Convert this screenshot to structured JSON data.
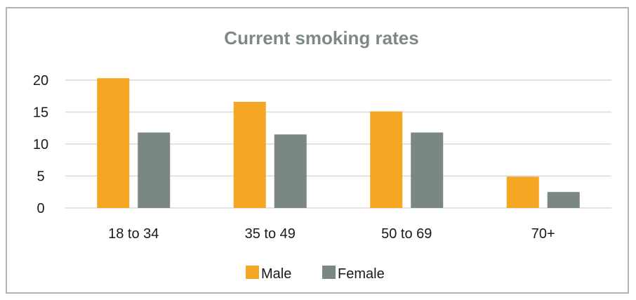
{
  "chart_data": {
    "type": "bar",
    "title": "Current smoking rates",
    "categories": [
      "18 to 34",
      "35 to 49",
      "50 to 69",
      "70+"
    ],
    "series": [
      {
        "name": "Male",
        "values": [
          20.3,
          16.6,
          15.1,
          4.9
        ],
        "color": "#f5a623"
      },
      {
        "name": "Female",
        "values": [
          11.8,
          11.5,
          11.8,
          2.5
        ],
        "color": "#7b8781"
      }
    ],
    "yticks": [
      0,
      5,
      10,
      15,
      20
    ],
    "ylim": [
      0,
      20
    ],
    "grid": true,
    "legend_position": "bottom",
    "gridline_color": "#d9d9d9"
  }
}
